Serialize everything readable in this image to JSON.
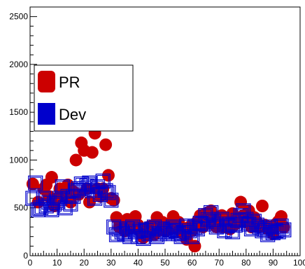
{
  "chart_data": {
    "type": "scatter",
    "xlim": [
      0,
      100
    ],
    "ylim": [
      0,
      2600
    ],
    "x_ticks": [
      0,
      10,
      20,
      30,
      40,
      50,
      60,
      70,
      80,
      90,
      100
    ],
    "y_ticks": [
      0,
      500,
      1000,
      1500,
      2000,
      2500
    ],
    "x_tick_labels": [
      "0",
      "10",
      "20",
      "30",
      "40",
      "50",
      "60",
      "70",
      "80",
      "90",
      "100"
    ],
    "y_tick_labels": [
      "0",
      "500",
      "1000",
      "1500",
      "2000",
      "2500"
    ],
    "grid": false,
    "legend": {
      "position": "upper-left"
    },
    "series": [
      {
        "name": "PR",
        "marker": "filled-circle",
        "color": "#cc0000",
        "points": [
          [
            1,
            750
          ],
          [
            3,
            560
          ],
          [
            5,
            700
          ],
          [
            6,
            740
          ],
          [
            7,
            620
          ],
          [
            8,
            820
          ],
          [
            9,
            520
          ],
          [
            10,
            600
          ],
          [
            11,
            700
          ],
          [
            12,
            620
          ],
          [
            13,
            690
          ],
          [
            14,
            740
          ],
          [
            15,
            560
          ],
          [
            16,
            670
          ],
          [
            17,
            1000
          ],
          [
            18,
            640
          ],
          [
            19,
            1180
          ],
          [
            20,
            1100
          ],
          [
            21,
            700
          ],
          [
            22,
            560
          ],
          [
            23,
            1080
          ],
          [
            24,
            1280
          ],
          [
            25,
            700
          ],
          [
            26,
            620
          ],
          [
            27,
            700
          ],
          [
            28,
            1160
          ],
          [
            29,
            840
          ],
          [
            30,
            600
          ],
          [
            31,
            580
          ],
          [
            32,
            400
          ],
          [
            33,
            300
          ],
          [
            34,
            330
          ],
          [
            35,
            260
          ],
          [
            36,
            380
          ],
          [
            37,
            290
          ],
          [
            38,
            330
          ],
          [
            39,
            410
          ],
          [
            40,
            320
          ],
          [
            41,
            250
          ],
          [
            42,
            190
          ],
          [
            43,
            220
          ],
          [
            44,
            300
          ],
          [
            45,
            310
          ],
          [
            46,
            220
          ],
          [
            47,
            400
          ],
          [
            48,
            320
          ],
          [
            49,
            350
          ],
          [
            50,
            260
          ],
          [
            51,
            330
          ],
          [
            52,
            280
          ],
          [
            53,
            410
          ],
          [
            54,
            320
          ],
          [
            55,
            350
          ],
          [
            56,
            240
          ],
          [
            57,
            280
          ],
          [
            58,
            170
          ],
          [
            59,
            300
          ],
          [
            60,
            260
          ],
          [
            61,
            100
          ],
          [
            62,
            360
          ],
          [
            63,
            420
          ],
          [
            64,
            300
          ],
          [
            65,
            440
          ],
          [
            66,
            380
          ],
          [
            67,
            470
          ],
          [
            68,
            420
          ],
          [
            69,
            300
          ],
          [
            70,
            350
          ],
          [
            71,
            420
          ],
          [
            72,
            300
          ],
          [
            73,
            360
          ],
          [
            74,
            280
          ],
          [
            75,
            440
          ],
          [
            76,
            330
          ],
          [
            77,
            390
          ],
          [
            78,
            560
          ],
          [
            79,
            420
          ],
          [
            80,
            350
          ],
          [
            81,
            470
          ],
          [
            82,
            300
          ],
          [
            83,
            400
          ],
          [
            84,
            350
          ],
          [
            85,
            300
          ],
          [
            86,
            520
          ],
          [
            87,
            320
          ],
          [
            88,
            280
          ],
          [
            89,
            300
          ],
          [
            90,
            230
          ],
          [
            91,
            330
          ],
          [
            92,
            360
          ],
          [
            93,
            410
          ],
          [
            94,
            300
          ]
        ]
      },
      {
        "name": "Dev",
        "marker": "open-square",
        "color": "#0000cc",
        "points": [
          [
            1,
            600
          ],
          [
            2,
            760
          ],
          [
            3,
            480
          ],
          [
            4,
            500
          ],
          [
            5,
            600
          ],
          [
            6,
            520
          ],
          [
            7,
            560
          ],
          [
            8,
            480
          ],
          [
            9,
            540
          ],
          [
            10,
            560
          ],
          [
            11,
            600
          ],
          [
            12,
            720
          ],
          [
            13,
            500
          ],
          [
            14,
            620
          ],
          [
            15,
            540
          ],
          [
            16,
            620
          ],
          [
            17,
            680
          ],
          [
            18,
            700
          ],
          [
            19,
            750
          ],
          [
            20,
            700
          ],
          [
            21,
            730
          ],
          [
            22,
            760
          ],
          [
            23,
            680
          ],
          [
            24,
            600
          ],
          [
            25,
            720
          ],
          [
            26,
            640
          ],
          [
            27,
            780
          ],
          [
            28,
            680
          ],
          [
            29,
            660
          ],
          [
            30,
            580
          ],
          [
            31,
            300
          ],
          [
            32,
            220
          ],
          [
            33,
            280
          ],
          [
            34,
            250
          ],
          [
            35,
            230
          ],
          [
            36,
            280
          ],
          [
            37,
            200
          ],
          [
            38,
            300
          ],
          [
            39,
            250
          ],
          [
            40,
            200
          ],
          [
            41,
            270
          ],
          [
            42,
            180
          ],
          [
            43,
            260
          ],
          [
            44,
            230
          ],
          [
            45,
            280
          ],
          [
            46,
            300
          ],
          [
            47,
            200
          ],
          [
            48,
            230
          ],
          [
            49,
            280
          ],
          [
            50,
            250
          ],
          [
            51,
            230
          ],
          [
            52,
            270
          ],
          [
            53,
            300
          ],
          [
            54,
            260
          ],
          [
            55,
            230
          ],
          [
            56,
            200
          ],
          [
            57,
            240
          ],
          [
            58,
            310
          ],
          [
            59,
            260
          ],
          [
            60,
            200
          ],
          [
            61,
            300
          ],
          [
            62,
            280
          ],
          [
            63,
            340
          ],
          [
            64,
            330
          ],
          [
            65,
            420
          ],
          [
            66,
            380
          ],
          [
            67,
            450
          ],
          [
            68,
            360
          ],
          [
            69,
            300
          ],
          [
            70,
            330
          ],
          [
            71,
            380
          ],
          [
            72,
            260
          ],
          [
            73,
            310
          ],
          [
            74,
            330
          ],
          [
            75,
            250
          ],
          [
            76,
            320
          ],
          [
            77,
            370
          ],
          [
            78,
            420
          ],
          [
            79,
            470
          ],
          [
            80,
            380
          ],
          [
            81,
            330
          ],
          [
            82,
            280
          ],
          [
            83,
            360
          ],
          [
            84,
            320
          ],
          [
            85,
            300
          ],
          [
            86,
            260
          ],
          [
            87,
            280
          ],
          [
            88,
            220
          ],
          [
            89,
            300
          ],
          [
            90,
            240
          ],
          [
            91,
            260
          ],
          [
            92,
            250
          ],
          [
            93,
            310
          ],
          [
            94,
            270
          ]
        ]
      }
    ]
  }
}
